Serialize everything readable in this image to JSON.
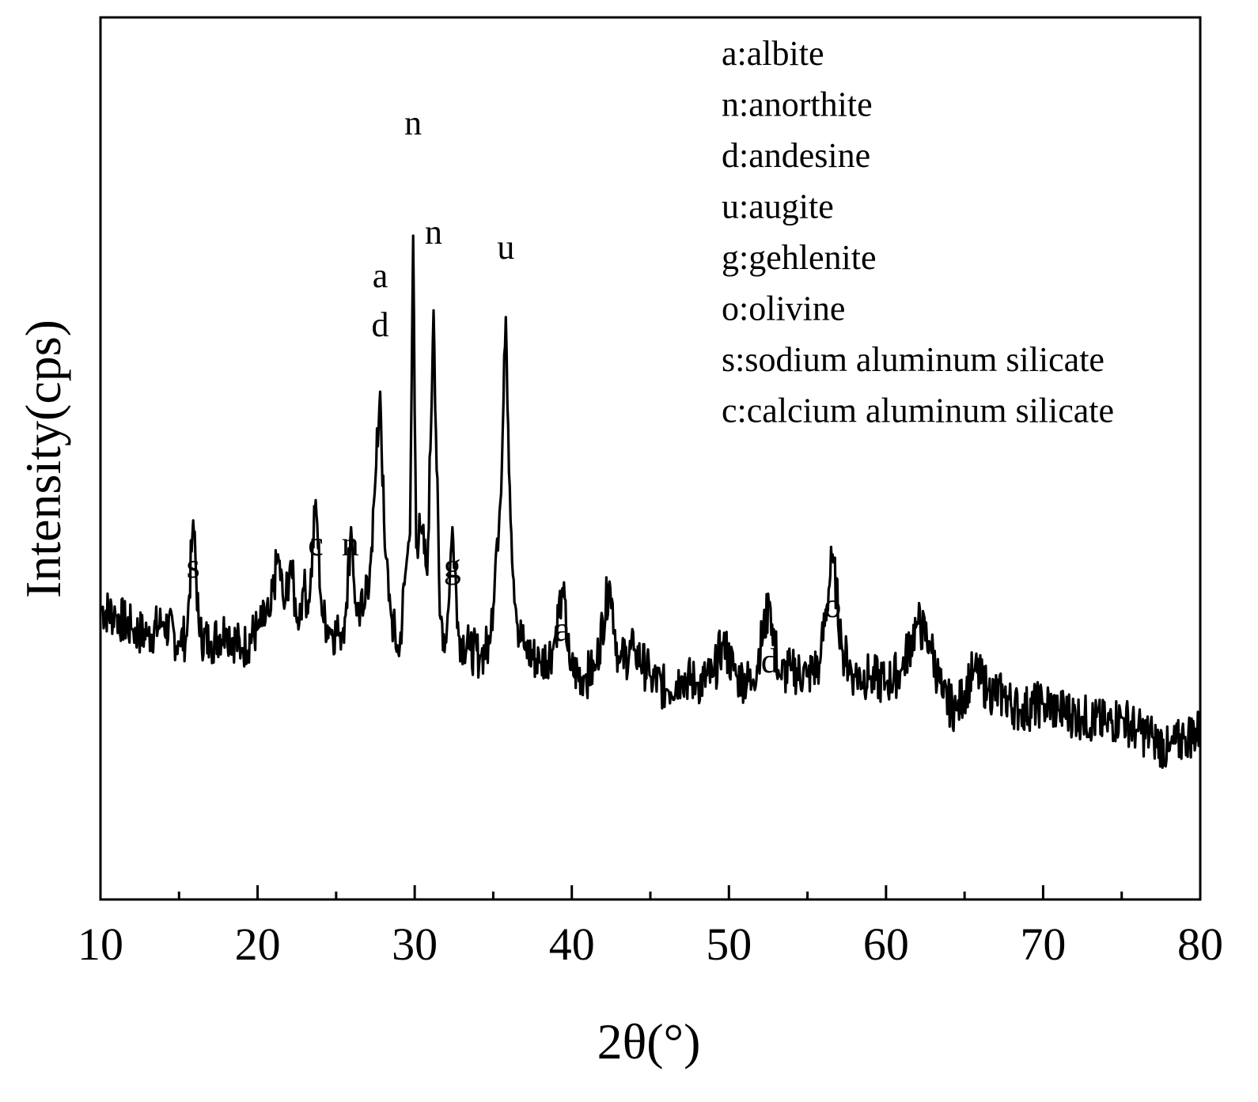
{
  "chart_data": {
    "type": "line",
    "xlabel": "2θ(°)",
    "ylabel": "Intensity(cps)",
    "xlim": [
      10,
      80
    ],
    "ylim": [
      0,
      100
    ],
    "x_ticks": [
      "10",
      "20",
      "30",
      "40",
      "50",
      "60",
      "70",
      "80"
    ],
    "legend": [
      "a:albite",
      "n:anorthite",
      "d:andesine",
      "u:augite",
      "g:gehlenite",
      "o:olivine",
      "s:sodium aluminum silicate",
      "c:calcium aluminum silicate"
    ],
    "peak_labels": [
      {
        "text": "s",
        "x": 15.9
      },
      {
        "text": "c",
        "x": 23.7
      },
      {
        "text": "n",
        "x": 25.9
      },
      {
        "text": "a",
        "x": 27.8
      },
      {
        "text": "d",
        "x": 27.8
      },
      {
        "text": "n",
        "x": 29.9
      },
      {
        "text": "n",
        "x": 31.2
      },
      {
        "text": "g",
        "x": 32.4
      },
      {
        "text": "u",
        "x": 35.8
      },
      {
        "text": "a",
        "x": 39.4
      },
      {
        "text": "d",
        "x": 52.6
      },
      {
        "text": "o",
        "x": 56.6
      }
    ],
    "series": [
      {
        "color": "#000000",
        "x": [
          10.0,
          11.0,
          12.0,
          13.0,
          14.0,
          15.0,
          15.5,
          15.9,
          16.3,
          17.0,
          18.0,
          19.0,
          20.0,
          20.8,
          21.3,
          21.7,
          22.1,
          22.5,
          22.9,
          23.3,
          23.7,
          24.1,
          24.6,
          25.2,
          25.6,
          25.95,
          26.3,
          26.8,
          27.2,
          27.5,
          27.8,
          28.1,
          28.5,
          29.0,
          29.4,
          29.7,
          29.9,
          30.1,
          30.4,
          30.8,
          31.2,
          31.6,
          32.0,
          32.4,
          32.8,
          33.5,
          34.2,
          34.8,
          35.2,
          35.5,
          35.8,
          36.1,
          36.5,
          37.0,
          38.0,
          38.8,
          39.4,
          39.9,
          40.8,
          41.5,
          42.4,
          43.0,
          44.0,
          45.0,
          46.0,
          47.0,
          48.0,
          49.0,
          49.6,
          50.5,
          51.5,
          52.6,
          53.2,
          54.0,
          55.0,
          55.8,
          56.6,
          57.2,
          58.0,
          59.0,
          60.0,
          61.0,
          62.0,
          62.8,
          63.6,
          64.5,
          65.6,
          66.5,
          67.5,
          68.5,
          70.0,
          71.0,
          72.5,
          74.0,
          75.0,
          76.0,
          77.0,
          78.0,
          79.0,
          80.0
        ],
        "y": [
          31,
          30,
          28,
          27,
          29,
          26,
          27,
          44,
          27,
          26,
          28,
          25,
          28,
          30,
          39,
          31,
          38,
          29,
          34,
          32,
          47,
          30,
          28,
          27,
          30,
          43,
          30,
          31,
          38,
          50,
          63,
          40,
          30,
          24,
          36,
          42,
          86,
          40,
          43,
          36,
          75,
          30,
          26,
          43,
          27,
          25,
          24,
          26,
          40,
          48,
          74,
          44,
          29,
          25,
          23,
          25,
          34,
          22,
          21,
          22,
          35,
          23,
          25,
          21,
          19,
          21,
          20,
          21,
          26,
          21,
          20,
          32,
          21,
          22,
          21,
          23,
          39,
          25,
          21,
          21,
          20,
          22,
          29,
          26,
          18,
          16,
          22,
          19,
          18,
          16,
          17,
          16,
          15,
          14,
          15,
          13,
          12,
          10,
          12,
          13
        ]
      }
    ]
  }
}
